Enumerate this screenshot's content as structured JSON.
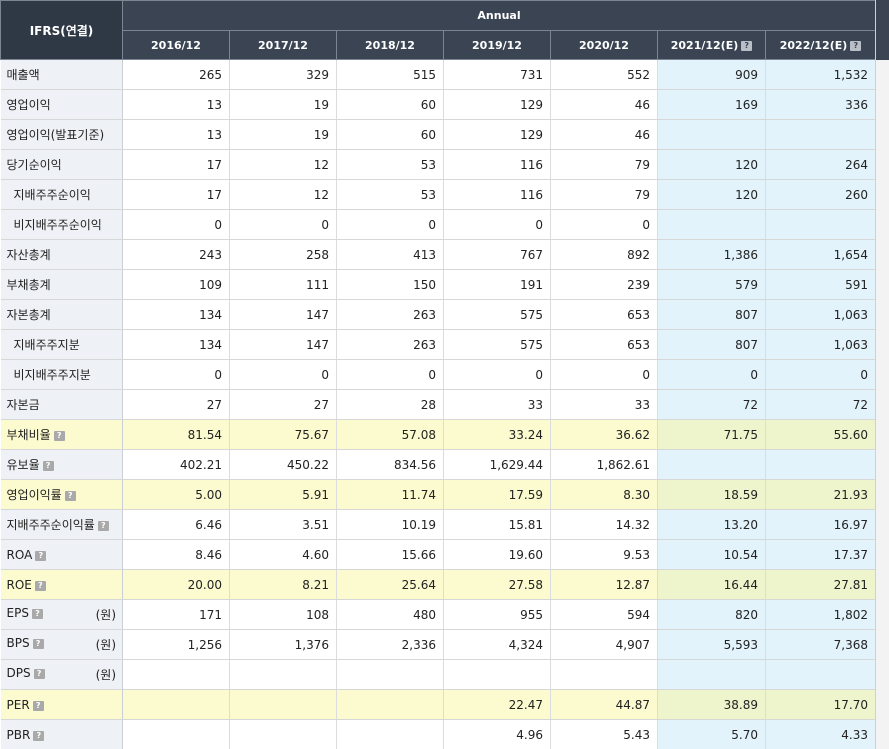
{
  "header": {
    "corner": "IFRS(연결)",
    "group": "Annual",
    "years": [
      "2016/12",
      "2017/12",
      "2018/12",
      "2019/12",
      "2020/12",
      "2021/12(E)",
      "2022/12(E)"
    ],
    "help_icon": "?"
  },
  "rows": [
    {
      "label": "매출액",
      "sub": false,
      "help": false,
      "unit": "",
      "hl": false,
      "v": [
        "265",
        "329",
        "515",
        "731",
        "552",
        "909",
        "1,532"
      ]
    },
    {
      "label": "영업이익",
      "sub": false,
      "help": false,
      "unit": "",
      "hl": false,
      "v": [
        "13",
        "19",
        "60",
        "129",
        "46",
        "169",
        "336"
      ]
    },
    {
      "label": "영업이익(발표기준)",
      "sub": false,
      "help": false,
      "unit": "",
      "hl": false,
      "v": [
        "13",
        "19",
        "60",
        "129",
        "46",
        "",
        ""
      ]
    },
    {
      "label": "당기순이익",
      "sub": false,
      "help": false,
      "unit": "",
      "hl": false,
      "v": [
        "17",
        "12",
        "53",
        "116",
        "79",
        "120",
        "264"
      ]
    },
    {
      "label": "지배주주순이익",
      "sub": true,
      "help": false,
      "unit": "",
      "hl": false,
      "v": [
        "17",
        "12",
        "53",
        "116",
        "79",
        "120",
        "260"
      ]
    },
    {
      "label": "비지배주주순이익",
      "sub": true,
      "help": false,
      "unit": "",
      "hl": false,
      "v": [
        "0",
        "0",
        "0",
        "0",
        "0",
        "",
        ""
      ]
    },
    {
      "label": "자산총계",
      "sub": false,
      "help": false,
      "unit": "",
      "hl": false,
      "v": [
        "243",
        "258",
        "413",
        "767",
        "892",
        "1,386",
        "1,654"
      ]
    },
    {
      "label": "부채총계",
      "sub": false,
      "help": false,
      "unit": "",
      "hl": false,
      "v": [
        "109",
        "111",
        "150",
        "191",
        "239",
        "579",
        "591"
      ]
    },
    {
      "label": "자본총계",
      "sub": false,
      "help": false,
      "unit": "",
      "hl": false,
      "v": [
        "134",
        "147",
        "263",
        "575",
        "653",
        "807",
        "1,063"
      ]
    },
    {
      "label": "지배주주지분",
      "sub": true,
      "help": false,
      "unit": "",
      "hl": false,
      "v": [
        "134",
        "147",
        "263",
        "575",
        "653",
        "807",
        "1,063"
      ]
    },
    {
      "label": "비지배주주지분",
      "sub": true,
      "help": false,
      "unit": "",
      "hl": false,
      "v": [
        "0",
        "0",
        "0",
        "0",
        "0",
        "0",
        "0"
      ]
    },
    {
      "label": "자본금",
      "sub": false,
      "help": false,
      "unit": "",
      "hl": false,
      "v": [
        "27",
        "27",
        "28",
        "33",
        "33",
        "72",
        "72"
      ]
    },
    {
      "label": "부채비율",
      "sub": false,
      "help": true,
      "unit": "",
      "hl": true,
      "v": [
        "81.54",
        "75.67",
        "57.08",
        "33.24",
        "36.62",
        "71.75",
        "55.60"
      ]
    },
    {
      "label": "유보율",
      "sub": false,
      "help": true,
      "unit": "",
      "hl": false,
      "v": [
        "402.21",
        "450.22",
        "834.56",
        "1,629.44",
        "1,862.61",
        "",
        ""
      ]
    },
    {
      "label": "영업이익률",
      "sub": false,
      "help": true,
      "unit": "",
      "hl": true,
      "v": [
        "5.00",
        "5.91",
        "11.74",
        "17.59",
        "8.30",
        "18.59",
        "21.93"
      ]
    },
    {
      "label": "지배주주순이익률",
      "sub": false,
      "help": true,
      "unit": "",
      "hl": false,
      "v": [
        "6.46",
        "3.51",
        "10.19",
        "15.81",
        "14.32",
        "13.20",
        "16.97"
      ]
    },
    {
      "label": "ROA",
      "sub": false,
      "help": true,
      "unit": "",
      "hl": false,
      "v": [
        "8.46",
        "4.60",
        "15.66",
        "19.60",
        "9.53",
        "10.54",
        "17.37"
      ]
    },
    {
      "label": "ROE",
      "sub": false,
      "help": true,
      "unit": "",
      "hl": true,
      "v": [
        "20.00",
        "8.21",
        "25.64",
        "27.58",
        "12.87",
        "16.44",
        "27.81"
      ]
    },
    {
      "label": "EPS",
      "sub": false,
      "help": true,
      "unit": "(원)",
      "hl": false,
      "v": [
        "171",
        "108",
        "480",
        "955",
        "594",
        "820",
        "1,802"
      ]
    },
    {
      "label": "BPS",
      "sub": false,
      "help": true,
      "unit": "(원)",
      "hl": false,
      "v": [
        "1,256",
        "1,376",
        "2,336",
        "4,324",
        "4,907",
        "5,593",
        "7,368"
      ]
    },
    {
      "label": "DPS",
      "sub": false,
      "help": true,
      "unit": "(원)",
      "hl": false,
      "v": [
        "",
        "",
        "",
        "",
        "",
        "",
        ""
      ]
    },
    {
      "label": "PER",
      "sub": false,
      "help": true,
      "unit": "",
      "hl": true,
      "v": [
        "",
        "",
        "",
        "22.47",
        "44.87",
        "38.89",
        "17.70"
      ]
    },
    {
      "label": "PBR",
      "sub": false,
      "help": true,
      "unit": "",
      "hl": false,
      "v": [
        "",
        "",
        "",
        "4.96",
        "5.43",
        "5.70",
        "4.33"
      ]
    }
  ]
}
